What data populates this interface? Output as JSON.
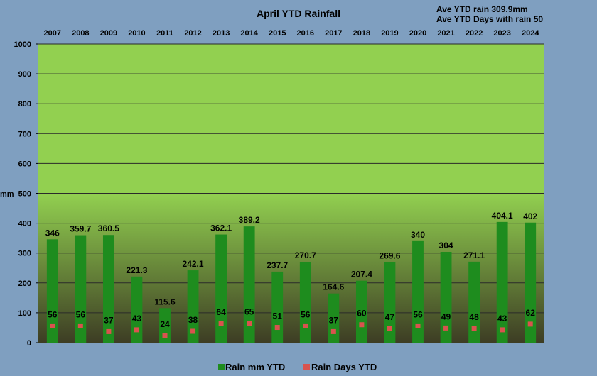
{
  "chart_data": {
    "type": "bar",
    "title": "April YTD Rainfall",
    "notes": [
      "Ave YTD rain 309.9mm",
      "Ave YTD Days  with rain 50"
    ],
    "ylabel": "mm",
    "xlabel": "",
    "ylim": [
      0,
      1000
    ],
    "yticks": [
      "0",
      "100",
      "200",
      "300",
      "400",
      "500",
      "600",
      "700",
      "800",
      "900",
      "1000"
    ],
    "x_axis_position": "top",
    "grid": true,
    "legend_position": "bottom",
    "categories": [
      "2007",
      "2008",
      "2009",
      "2010",
      "2011",
      "2012",
      "2013",
      "2014",
      "2015",
      "2016",
      "2017",
      "2018",
      "2019",
      "2020",
      "2021",
      "2022",
      "2023",
      "2024"
    ],
    "series": [
      {
        "name": "Rain mm YTD",
        "kind": "bar",
        "color": "#1e8c1e",
        "values": [
          346,
          359.7,
          360.5,
          221.3,
          115.6,
          242.1,
          362.1,
          389.2,
          237.7,
          270.7,
          164.6,
          207.4,
          269.6,
          340,
          304,
          271.1,
          404.1,
          402
        ],
        "labels": [
          "346",
          "359.7",
          "360.5",
          "221.3",
          "115.6",
          "242.1",
          "362.1",
          "389.2",
          "237.7",
          "270.7",
          "164.6",
          "207.4",
          "269.6",
          "340",
          "304",
          "271.1",
          "404.1",
          "402"
        ]
      },
      {
        "name": "Rain Days YTD",
        "kind": "marker",
        "color": "#d9534f",
        "values": [
          56,
          56,
          37,
          43,
          24,
          38,
          64,
          65,
          51,
          56,
          37,
          60,
          47,
          56,
          49,
          48,
          43,
          62
        ],
        "labels": [
          "56",
          "56",
          "37",
          "43",
          "24",
          "38",
          "64",
          "65",
          "51",
          "56",
          "37",
          "60",
          "47",
          "56",
          "49",
          "48",
          "43",
          "62"
        ]
      }
    ],
    "colors": {
      "page_background": "#7f9fc0",
      "plot_top": "#92d050",
      "plot_bottom": "#3d3d24",
      "gridline": "#2a2a2a"
    }
  }
}
